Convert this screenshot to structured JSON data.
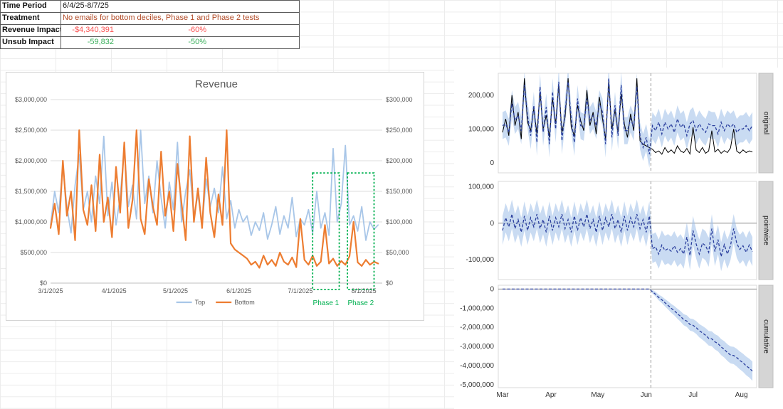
{
  "summary_table": {
    "rows": [
      {
        "label": "Time Period",
        "value": "6/4/25-8/7/25",
        "pct": "",
        "value_color": "#1a1a1a",
        "pct_color": "#1a1a1a"
      },
      {
        "label": "Treatment",
        "value": "No emails for bottom deciles, Phase 1 and Phase 2 tests",
        "pct": "",
        "value_color": "#B14A26",
        "pct_color": "#1a1a1a"
      },
      {
        "label": "Revenue Impact",
        "value": "-$4,340,391",
        "pct": "-60%",
        "value_color": "#FA5252",
        "pct_color": "#FA5252"
      },
      {
        "label": "Unsub Impact",
        "value": "-59,832",
        "pct": "-50%",
        "value_color": "#3BAF5C",
        "pct_color": "#3BAF5C"
      }
    ]
  },
  "chart_data": [
    {
      "type": "line",
      "title": "Revenue",
      "start_date": "3/1/2025",
      "step_days": 2,
      "x_axis": {
        "max_day": 162,
        "ticks": [
          {
            "day": 0,
            "label": "3/1/2025"
          },
          {
            "day": 31,
            "label": "4/1/2025"
          },
          {
            "day": 61,
            "label": "5/1/2025"
          },
          {
            "day": 92,
            "label": "6/1/2025"
          },
          {
            "day": 122,
            "label": "7/1/2025"
          },
          {
            "day": 153,
            "label": "8/1/2025"
          }
        ]
      },
      "left_axis": {
        "min": 0,
        "max": 3000000,
        "ticks": [
          {
            "value": 0,
            "label": "$0"
          },
          {
            "value": 500000,
            "label": "$500,000"
          },
          {
            "value": 1000000,
            "label": "$1,000,000"
          },
          {
            "value": 1500000,
            "label": "$1,500,000"
          },
          {
            "value": 2000000,
            "label": "$2,000,000"
          },
          {
            "value": 2500000,
            "label": "$2,500,000"
          },
          {
            "value": 3000000,
            "label": "$3,000,000"
          }
        ]
      },
      "right_axis": {
        "min": 0,
        "max": 300000,
        "ticks": [
          {
            "value": 0,
            "label": "$0"
          },
          {
            "value": 50000,
            "label": "$50,000"
          },
          {
            "value": 100000,
            "label": "$100,000"
          },
          {
            "value": 150000,
            "label": "$150,000"
          },
          {
            "value": 200000,
            "label": "$200,000"
          },
          {
            "value": 250000,
            "label": "$250,000"
          },
          {
            "value": 300000,
            "label": "$300,000"
          }
        ]
      },
      "series": [
        {
          "name": "Top",
          "axis": "left",
          "color": "#A8C6E8",
          "values": [
            950000,
            1500000,
            1150000,
            1900000,
            1250000,
            820000,
            1600000,
            2100000,
            1200000,
            1500000,
            1000000,
            1750000,
            1300000,
            2400000,
            1100000,
            1650000,
            950000,
            1400000,
            2200000,
            1250000,
            1600000,
            1050000,
            2500000,
            1300000,
            1750000,
            1150000,
            2000000,
            1400000,
            900000,
            1650000,
            1200000,
            2300000,
            1000000,
            1500000,
            1850000,
            1100000,
            1450000,
            950000,
            1700000,
            1250000,
            1550000,
            1150000,
            1900000,
            1050000,
            1350000,
            900000,
            1200000,
            1000000,
            1100000,
            780000,
            1000000,
            860000,
            1150000,
            720000,
            950000,
            1250000,
            800000,
            1100000,
            900000,
            1400000,
            760000,
            1050000,
            950000,
            1200000,
            820000,
            1500000,
            900000,
            1150000,
            780000,
            2200000,
            1000000,
            1300000,
            2250000,
            950000,
            1100000,
            850000,
            1250000,
            700000,
            1000000,
            880000,
            950000
          ]
        },
        {
          "name": "Bottom",
          "axis": "right",
          "color": "#ED7D31",
          "values": [
            90000,
            130000,
            80000,
            200000,
            110000,
            150000,
            70000,
            250000,
            120000,
            95000,
            160000,
            85000,
            210000,
            100000,
            140000,
            75000,
            190000,
            115000,
            230000,
            90000,
            135000,
            250000,
            105000,
            80000,
            170000,
            125000,
            95000,
            215000,
            110000,
            150000,
            85000,
            195000,
            130000,
            70000,
            240000,
            100000,
            155000,
            90000,
            205000,
            115000,
            75000,
            145000,
            95000,
            250000,
            65000,
            55000,
            50000,
            45000,
            40000,
            30000,
            35000,
            25000,
            45000,
            30000,
            38000,
            28000,
            50000,
            35000,
            30000,
            42000,
            26000,
            105000,
            38000,
            30000,
            45000,
            28000,
            35000,
            95000,
            32000,
            40000,
            28000,
            36000,
            30000,
            44000,
            100000,
            34000,
            28000,
            38000,
            30000,
            35000,
            32000
          ]
        }
      ],
      "annotations": [
        {
          "label": "Phase 1",
          "day_start": 128,
          "day_end": 141,
          "value_top": 1800000,
          "color": "#00B050"
        },
        {
          "label": "Phase 2",
          "day_start": 145,
          "day_end": 158,
          "value_top": 1800000,
          "color": "#00B050"
        }
      ]
    },
    {
      "type": "causal-impact",
      "panel_labels": [
        "original",
        "pointwise",
        "cumulative"
      ],
      "start_date": "3/1/2025",
      "step_days": 2,
      "intervention_day": 95,
      "x_axis": {
        "max_day": 160,
        "ticks": [
          {
            "day": 0,
            "label": "Mar"
          },
          {
            "day": 31,
            "label": "Apr"
          },
          {
            "day": 61,
            "label": "May"
          },
          {
            "day": 92,
            "label": "Jun"
          },
          {
            "day": 122,
            "label": "Jul"
          },
          {
            "day": 153,
            "label": "Aug"
          }
        ]
      },
      "axes": {
        "original": {
          "min": -30000,
          "max": 265000,
          "ticks": [
            {
              "value": 0,
              "label": "0"
            },
            {
              "value": 100000,
              "label": "100,000"
            },
            {
              "value": 200000,
              "label": "200,000"
            }
          ]
        },
        "pointwise": {
          "min": -155000,
          "max": 115000,
          "ticks": [
            {
              "value": 100000,
              "label": "100,000"
            },
            {
              "value": 0,
              "label": "0"
            },
            {
              "value": -100000,
              "label": "-100,000"
            }
          ]
        },
        "cumulative": {
          "min": -5150000,
          "max": 200000,
          "ticks": [
            {
              "value": 0,
              "label": "0"
            },
            {
              "value": -1000000,
              "label": "-1,000,000"
            },
            {
              "value": -2000000,
              "label": "-2,000,000"
            },
            {
              "value": -3000000,
              "label": "-3,000,000"
            },
            {
              "value": -4000000,
              "label": "-4,000,000"
            },
            {
              "value": -5000000,
              "label": "-5,000,000"
            }
          ]
        }
      },
      "actual": [
        90000,
        130000,
        80000,
        200000,
        110000,
        150000,
        70000,
        250000,
        120000,
        95000,
        160000,
        85000,
        210000,
        100000,
        140000,
        75000,
        190000,
        115000,
        230000,
        90000,
        135000,
        250000,
        105000,
        80000,
        170000,
        125000,
        95000,
        215000,
        110000,
        150000,
        85000,
        195000,
        130000,
        70000,
        240000,
        100000,
        155000,
        90000,
        205000,
        115000,
        75000,
        145000,
        95000,
        250000,
        65000,
        55000,
        50000,
        45000,
        40000,
        30000,
        35000,
        25000,
        45000,
        30000,
        38000,
        28000,
        50000,
        35000,
        30000,
        42000,
        26000,
        105000,
        38000,
        30000,
        45000,
        28000,
        35000,
        95000,
        32000,
        40000,
        28000,
        36000,
        30000,
        44000,
        100000,
        34000,
        28000,
        38000,
        30000,
        35000,
        32000
      ],
      "predicted": [
        110000,
        115000,
        90000,
        175000,
        125000,
        140000,
        95000,
        230000,
        140000,
        80000,
        170000,
        60000,
        225000,
        90000,
        165000,
        55000,
        210000,
        100000,
        240000,
        65000,
        150000,
        240000,
        130000,
        60000,
        190000,
        110000,
        105000,
        190000,
        125000,
        140000,
        110000,
        175000,
        150000,
        55000,
        250000,
        75000,
        170000,
        80000,
        230000,
        95000,
        95000,
        130000,
        105000,
        225000,
        80000,
        45000,
        75000,
        25000,
        110000,
        95000,
        120000,
        85000,
        120000,
        100000,
        115000,
        90000,
        130000,
        105000,
        115000,
        80000,
        115000,
        125000,
        95000,
        115000,
        100000,
        90000,
        115000,
        110000,
        110000,
        85000,
        120000,
        95000,
        115000,
        105000,
        115000,
        90000,
        100000,
        100000,
        110000,
        95000,
        110000
      ],
      "ci_halfwidth": 40000,
      "cumulative_ci_growth": 87000,
      "band_color": "#9DBEE8",
      "predicted_color": "#2B3F9E",
      "actual_color": "#000000",
      "vline_color": "#999999"
    }
  ]
}
